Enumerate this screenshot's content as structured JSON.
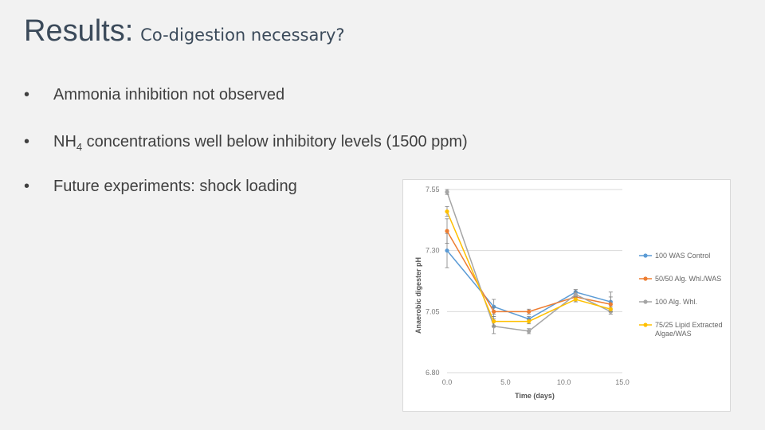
{
  "slide": {
    "title_main": "Results:",
    "title_sub": "Co-digestion necessary?",
    "bullet_char": "•",
    "bullets": {
      "b1": "Ammonia inhibition not observed",
      "b2_pre": "NH",
      "b2_sub": "4",
      "b2_post": " concentrations well below inhibitory levels (1500 ppm)",
      "b3": "Future experiments: shock loading"
    }
  },
  "chart_data": {
    "type": "line",
    "title": "",
    "xlabel": "Time (days)",
    "ylabel": "Anaerobic digester pH",
    "xlim": [
      0,
      15
    ],
    "ylim": [
      6.8,
      7.55
    ],
    "x_ticks": [
      0,
      5,
      10,
      15
    ],
    "x_tick_labels": [
      "0.0",
      "5.0",
      "10.0",
      "15.0"
    ],
    "y_ticks": [
      6.8,
      7.05,
      7.3,
      7.55
    ],
    "y_tick_labels": [
      "6.80",
      "7.05",
      "7.30",
      "7.55"
    ],
    "grid": "horizontal",
    "legend_position": "right",
    "series": [
      {
        "name": "100 WAS Control",
        "color": "#5b9bd5",
        "points": [
          [
            0,
            7.3
          ],
          [
            4,
            7.07
          ],
          [
            7,
            7.02
          ],
          [
            11,
            7.13
          ],
          [
            14,
            7.09
          ]
        ],
        "errors": [
          0.07,
          0.03,
          0.01,
          0.01,
          0.04
        ]
      },
      {
        "name": "50/50 Alg. Whl./WAS",
        "color": "#ed7d31",
        "points": [
          [
            0,
            7.38
          ],
          [
            4,
            7.05
          ],
          [
            7,
            7.05
          ],
          [
            11,
            7.11
          ],
          [
            14,
            7.08
          ]
        ],
        "errors": [
          0.05,
          0.02,
          0.01,
          0.02,
          0.03
        ]
      },
      {
        "name": "100 Alg. Whl.",
        "color": "#a5a5a5",
        "points": [
          [
            0,
            7.54
          ],
          [
            4,
            6.99
          ],
          [
            7,
            6.97
          ],
          [
            11,
            7.12
          ],
          [
            14,
            7.05
          ]
        ],
        "errors": [
          0.01,
          0.03,
          0.01,
          0.02,
          0.01
        ]
      },
      {
        "name": "75/25 Lipid Extracted Algae/WAS",
        "legend_lines": [
          "75/25 Lipid Extracted",
          "Algae/WAS"
        ],
        "color": "#ffc000",
        "points": [
          [
            0,
            7.46
          ],
          [
            4,
            7.01
          ],
          [
            7,
            7.01
          ],
          [
            11,
            7.1
          ],
          [
            14,
            7.06
          ]
        ],
        "errors": [
          0.02,
          0.02,
          0.01,
          0.01,
          0.01
        ]
      }
    ]
  }
}
